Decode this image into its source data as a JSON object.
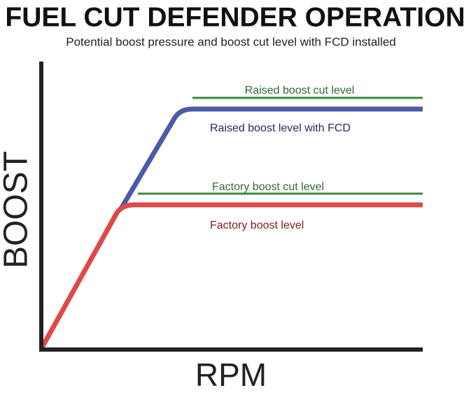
{
  "header": {
    "title": "FUEL CUT DEFENDER OPERATION",
    "subtitle": "Potential boost pressure and boost cut level with FCD installed"
  },
  "axes": {
    "y_label": "BOOST",
    "x_label": "RPM"
  },
  "lines": [
    {
      "label": "Raised boost cut level"
    },
    {
      "label": "Raised boost level with FCD"
    },
    {
      "label": "Factory boost cut level"
    },
    {
      "label": "Factory boost level"
    }
  ]
}
